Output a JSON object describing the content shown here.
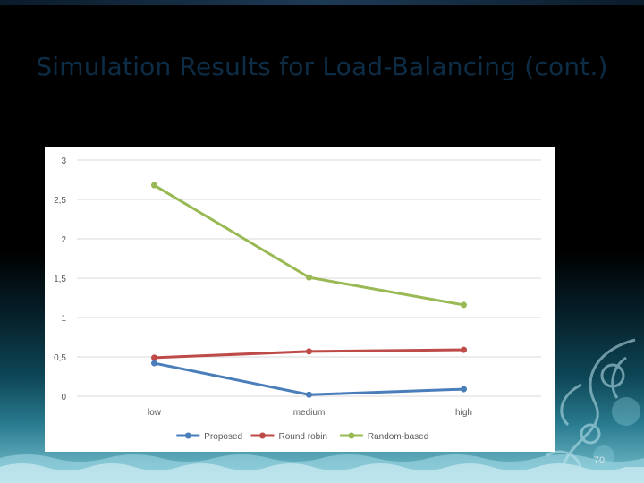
{
  "slide": {
    "title": "Simulation Results for Load-Balancing (cont.)",
    "page_number": "70"
  },
  "chart_data": {
    "type": "line",
    "categories": [
      "low",
      "medium",
      "high"
    ],
    "y_tick_labels": [
      "0",
      "0,5",
      "1",
      "1,5",
      "2",
      "2,5",
      "3"
    ],
    "ylim": [
      0,
      3
    ],
    "grid": true,
    "legend_position": "bottom",
    "series": [
      {
        "name": "Proposed",
        "color": "#4a7ebb",
        "values": [
          0.42,
          0.02,
          0.09
        ]
      },
      {
        "name": "Round robin",
        "color": "#be4b48",
        "values": [
          0.49,
          0.57,
          0.59
        ]
      },
      {
        "name": "Random-based",
        "color": "#98b954",
        "values": [
          2.68,
          1.51,
          1.16
        ]
      }
    ]
  }
}
